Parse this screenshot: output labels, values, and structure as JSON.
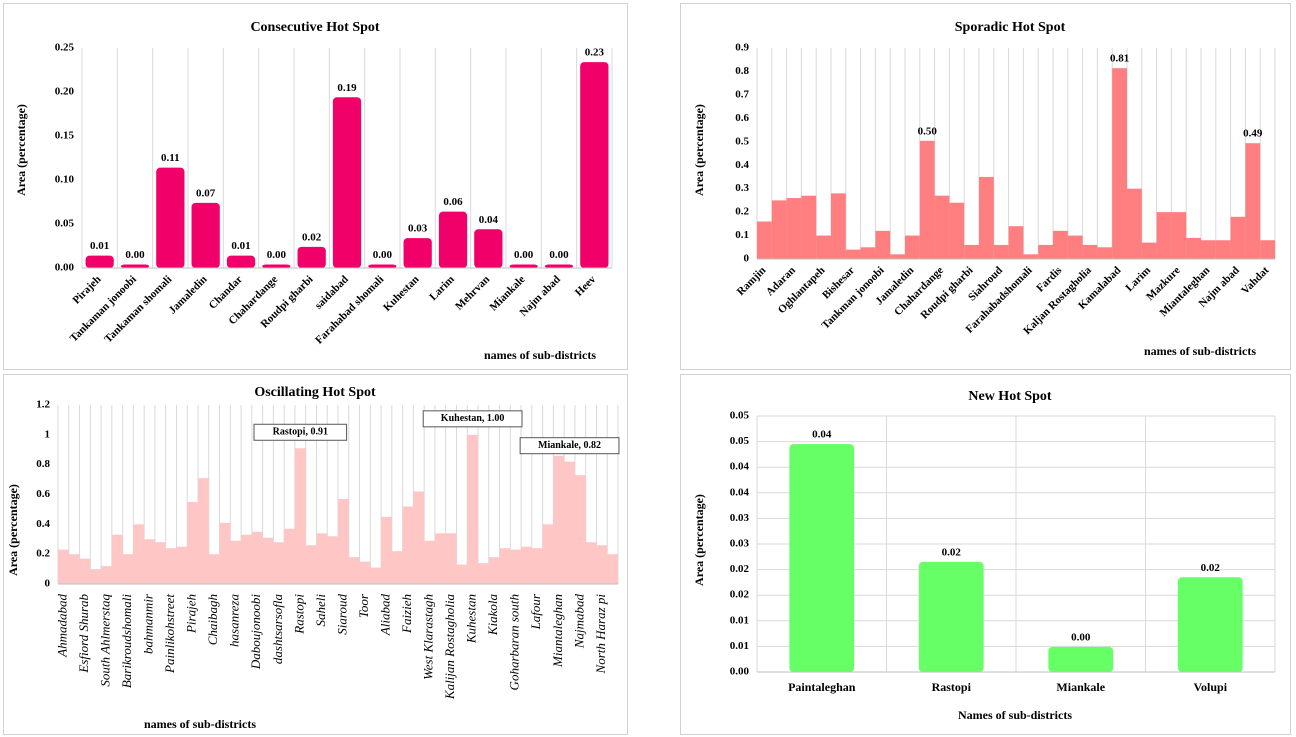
{
  "chart_data": [
    {
      "type": "bar",
      "title": "Consecutive Hot Spot",
      "y_label": "Area (percentage)",
      "x_label": "names of sub-districts",
      "color": "#f2006a",
      "grid": "x",
      "categories": [
        "Pirajeh",
        "Tankaman jonoobi",
        "Tankaman shomali",
        "Jamaledin",
        "Chandar",
        "Chahardange",
        "Roudpi gharbi",
        "saidabad",
        "Farahabad shomali",
        "Kuhestan",
        "Larim",
        "Mehrvan",
        "Miankale",
        "Najm abad",
        "Heev"
      ],
      "values": [
        0.014,
        0.004,
        0.114,
        0.074,
        0.014,
        0.004,
        0.024,
        0.194,
        0.004,
        0.034,
        0.064,
        0.044,
        0.004,
        0.004,
        0.234
      ],
      "value_labels": [
        "0.01",
        "0.00",
        "0.11",
        "0.07",
        "0.01",
        "0.00",
        "0.02",
        "0.19",
        "0.00",
        "0.03",
        "0.06",
        "0.04",
        "0.00",
        "0.00",
        "0.23"
      ],
      "ylim": [
        0,
        0.25
      ],
      "yticks": [
        {
          "value": 0,
          "label": "0.00"
        },
        {
          "value": 0.05,
          "label": "0.05"
        },
        {
          "value": 0.1,
          "label": "0.10"
        },
        {
          "value": 0.15,
          "label": "0.15"
        },
        {
          "value": 0.2,
          "label": "0.20"
        },
        {
          "value": 0.25,
          "label": "0.25"
        }
      ]
    },
    {
      "type": "bar",
      "title": "Sporadic Hot Spot",
      "y_label": "Area (percentage)",
      "x_label": "names of sub-districts",
      "color": "#ff7f80",
      "grid": "x",
      "categories": [
        "Ramjin",
        null,
        "Adaran",
        null,
        "Oghlantapeh",
        null,
        "Bishesar",
        null,
        "Tankman jonoobi",
        null,
        "Jamaledin",
        null,
        "Chahardange",
        null,
        "Roudpi gharbi",
        null,
        "Siahroud",
        null,
        "Farahabadshomali",
        null,
        "Fardis",
        null,
        "Kaljan Rostagholia",
        null,
        "Kamalabad",
        null,
        "Larim",
        null,
        "Mazkure",
        null,
        "Miantaleghan",
        null,
        "Najm abad",
        null,
        "Vahdat"
      ],
      "values": [
        0.16,
        0.25,
        0.26,
        0.27,
        0.1,
        0.28,
        0.04,
        0.05,
        0.12,
        0.02,
        0.1,
        0.504,
        0.27,
        0.24,
        0.06,
        0.35,
        0.06,
        0.14,
        0.02,
        0.06,
        0.12,
        0.1,
        0.06,
        0.05,
        0.814,
        0.3,
        0.07,
        0.2,
        0.2,
        0.09,
        0.08,
        0.08,
        0.18,
        0.494,
        0.08
      ],
      "value_labels": [
        null,
        null,
        null,
        null,
        null,
        null,
        null,
        null,
        null,
        null,
        null,
        "0.50",
        null,
        null,
        null,
        null,
        null,
        null,
        null,
        null,
        null,
        null,
        null,
        null,
        "0.81",
        null,
        null,
        null,
        null,
        null,
        null,
        null,
        null,
        "0.49",
        null
      ],
      "ylim": [
        0,
        0.9
      ],
      "yticks": [
        0,
        0.1,
        0.2,
        0.3,
        0.4,
        0.5,
        0.6,
        0.7,
        0.8,
        0.9
      ]
    },
    {
      "type": "bar",
      "title": "Oscillating Hot Spot",
      "y_label": "Area (percentage)",
      "x_label": "names of sub-districts",
      "color": "#ffc6c6",
      "grid": "x",
      "categories": [
        "Ahmadabad",
        null,
        "Esfiord Shurab",
        null,
        "South Ahlmerstaq",
        null,
        "Barikroudshomali",
        null,
        "bahmanmir",
        null,
        "Painlikohstreet",
        null,
        "Pirajeh",
        null,
        "Chaibagh",
        null,
        "hasanreza",
        null,
        "Daboujonoobi",
        null,
        "dashtsarsofla",
        null,
        "Rastopi",
        null,
        "Saheli",
        null,
        "Siaroud",
        null,
        "Toor",
        null,
        "Aliabad",
        null,
        "Faizieh",
        null,
        "West Klarastagh",
        null,
        "Kalijan Rostagholia",
        null,
        "Kuhestan",
        null,
        "Kiakola",
        null,
        "Goharbaran south",
        null,
        "Lafour",
        null,
        "Miantaleghan",
        null,
        "Najmabad",
        null,
        "North Haraz pi",
        null
      ],
      "values": [
        0.23,
        0.2,
        0.17,
        0.1,
        0.12,
        0.33,
        0.2,
        0.4,
        0.3,
        0.28,
        0.24,
        0.25,
        0.55,
        0.71,
        0.2,
        0.41,
        0.29,
        0.33,
        0.35,
        0.31,
        0.28,
        0.37,
        0.91,
        0.26,
        0.34,
        0.32,
        0.57,
        0.18,
        0.15,
        0.11,
        0.45,
        0.22,
        0.52,
        0.62,
        0.29,
        0.34,
        0.34,
        0.13,
        1.0,
        0.14,
        0.18,
        0.24,
        0.23,
        0.25,
        0.24,
        0.4,
        0.86,
        0.82,
        0.73,
        0.28,
        0.26,
        0.2
      ],
      "value_labels": [
        null,
        null,
        null,
        null,
        null,
        null,
        null,
        null,
        null,
        null,
        null,
        null,
        null,
        null,
        null,
        null,
        null,
        null,
        null,
        null,
        null,
        null,
        "Rastopi, 0.91",
        null,
        null,
        null,
        null,
        null,
        null,
        null,
        null,
        null,
        null,
        null,
        null,
        null,
        null,
        null,
        "Kuhestan, 1.00",
        null,
        null,
        null,
        null,
        null,
        null,
        null,
        null,
        "Miankale, 0.82",
        null,
        null,
        null,
        null
      ],
      "ylim": [
        0,
        1.2
      ],
      "yticks": [
        0,
        0.2,
        0.4,
        0.6,
        0.8,
        1,
        1.2
      ]
    },
    {
      "type": "bar",
      "title": "New Hot Spot",
      "y_label": "Area (percentage)",
      "x_label": "Names of sub-districts",
      "color": "#66ff66",
      "grid": "both",
      "categories": [
        "Paintaleghan",
        "Rastopi",
        "Miankale",
        "Volupi"
      ],
      "values": [
        0.0445,
        0.0215,
        0.0049,
        0.0185
      ],
      "value_labels": [
        "0.04",
        "0.02",
        "0.00",
        "0.02"
      ],
      "ylim": [
        0,
        0.05
      ],
      "yticks": [
        {
          "value": 0,
          "label": "0.00"
        },
        {
          "value": 0.005,
          "label": "0.01"
        },
        {
          "value": 0.01,
          "label": "0.01"
        },
        {
          "value": 0.015,
          "label": "0.02"
        },
        {
          "value": 0.02,
          "label": "0.02"
        },
        {
          "value": 0.025,
          "label": "0.03"
        },
        {
          "value": 0.03,
          "label": "0.03"
        },
        {
          "value": 0.035,
          "label": "0.04"
        },
        {
          "value": 0.04,
          "label": "0.04"
        },
        {
          "value": 0.045,
          "label": "0.05"
        },
        {
          "value": 0.05,
          "label": "0.05"
        }
      ]
    }
  ]
}
